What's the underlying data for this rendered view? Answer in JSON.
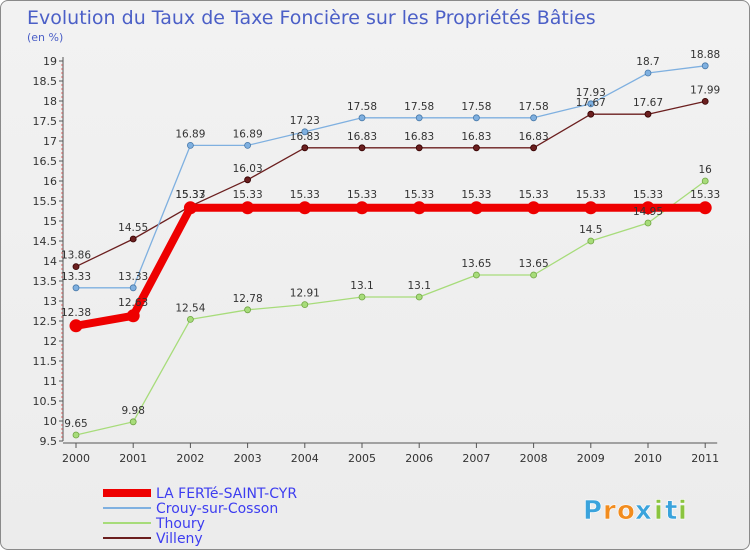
{
  "chart_data": {
    "type": "line",
    "title": "Evolution du Taux de Taxe Foncière sur les Propriétés Bâties",
    "ylabel": "(en %)",
    "xlabel": "",
    "ylim": [
      9.5,
      19
    ],
    "yticks": [
      "9.5",
      "10",
      "10.5",
      "11",
      "11.5",
      "12",
      "12.5",
      "13",
      "13.5",
      "14",
      "14.5",
      "15",
      "15.5",
      "16",
      "16.5",
      "17",
      "17.5",
      "18",
      "18.5",
      "19"
    ],
    "categories": [
      "2000",
      "2001",
      "2002",
      "2003",
      "2004",
      "2005",
      "2006",
      "2007",
      "2008",
      "2009",
      "2010",
      "2011"
    ],
    "series": [
      {
        "name": "Villeny",
        "color": "#6b1f1f",
        "values": [
          13.86,
          14.55,
          15.37,
          16.03,
          16.83,
          16.83,
          16.83,
          16.83,
          16.83,
          17.67,
          17.67,
          17.99
        ],
        "labels": [
          "13.86",
          "14.55",
          "15.37",
          "16.03",
          "16.83",
          "16.83",
          "16.83",
          "16.83",
          "16.83",
          "17.67",
          "17.67",
          "17.99"
        ]
      },
      {
        "name": "Crouy-sur-Cosson",
        "color": "#7fb0e0",
        "values": [
          13.33,
          13.33,
          16.89,
          16.89,
          17.23,
          17.58,
          17.58,
          17.58,
          17.58,
          17.93,
          18.7,
          18.88
        ],
        "labels": [
          "13.33",
          "13.33",
          "16.89",
          "16.89",
          "17.23",
          "17.58",
          "17.58",
          "17.58",
          "17.58",
          "17.93",
          "18.7",
          "18.88"
        ]
      },
      {
        "name": "Thoury",
        "color": "#a7dc7a",
        "values": [
          9.65,
          9.98,
          12.54,
          12.78,
          12.91,
          13.1,
          13.1,
          13.65,
          13.65,
          14.5,
          14.95,
          16
        ],
        "labels": [
          "9.65",
          "9.98",
          "12.54",
          "12.78",
          "12.91",
          "13.1",
          "13.1",
          "13.65",
          "13.65",
          "14.5",
          "14.95",
          "16"
        ]
      },
      {
        "name": "LA FERTé-SAINT-CYR",
        "color": "#ee0000",
        "values": [
          12.38,
          12.63,
          15.33,
          15.33,
          15.33,
          15.33,
          15.33,
          15.33,
          15.33,
          15.33,
          15.33,
          15.33
        ],
        "labels": [
          "12.38",
          "12.63",
          "15.33",
          "15.33",
          "15.33",
          "15.33",
          "15.33",
          "15.33",
          "15.33",
          "15.33",
          "15.33",
          "15.33"
        ]
      }
    ],
    "legend": [
      "LA FERTé-SAINT-CYR",
      "Crouy-sur-Cosson",
      "Thoury",
      "Villeny"
    ],
    "legend_position": "bottom-left",
    "grid": false
  },
  "logo": {
    "text": "Proxiti",
    "letters": [
      "P",
      "r",
      "o",
      "x",
      "i",
      "t",
      "i"
    ],
    "colors": [
      "#3aa3dc",
      "#f28c1e",
      "#f28c1e",
      "#3aa3dc",
      "#8ac43f",
      "#3aa3dc",
      "#8ac43f"
    ]
  }
}
